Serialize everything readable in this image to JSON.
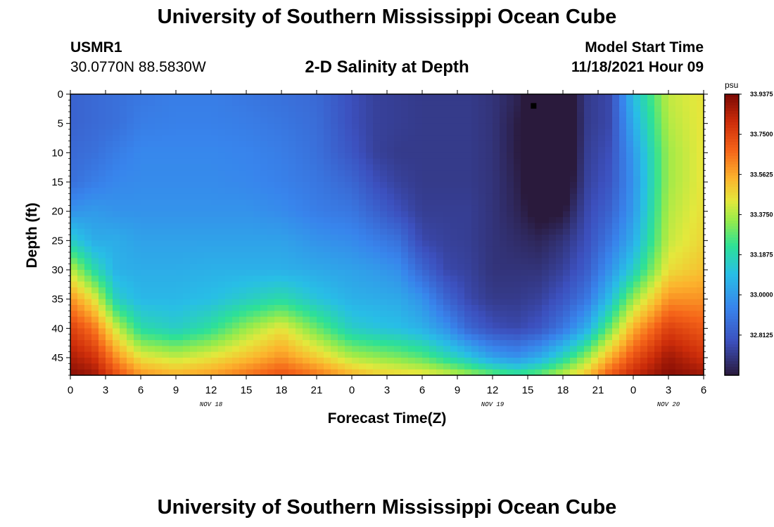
{
  "header": {
    "title": "University of Southern Mississippi Ocean Cube",
    "station": "USMR1",
    "coords": "30.0770N  88.5830W",
    "subtitle": "2-D Salinity at Depth",
    "model_start_label": "Model Start Time",
    "model_start_value": "11/18/2021 Hour 09"
  },
  "footer": {
    "title": "University of Southern Mississippi Ocean Cube"
  },
  "chart_data": {
    "type": "heatmap",
    "xlabel": "Forecast Time(Z)",
    "ylabel": "Depth (ft)",
    "colorbar_unit": "psu",
    "x_hours_range": [
      0,
      54
    ],
    "y_depth_range": [
      0,
      48
    ],
    "y_ticks": [
      0,
      5,
      10,
      15,
      20,
      25,
      30,
      35,
      40,
      45
    ],
    "x_tick_labels": [
      "0",
      "3",
      "6",
      "9",
      "12",
      "15",
      "18",
      "21",
      "0",
      "3",
      "6",
      "9",
      "12",
      "15",
      "18",
      "21",
      "0",
      "3",
      "6"
    ],
    "date_labels": [
      {
        "hour": 12,
        "label": "NOV 18"
      },
      {
        "hour": 36,
        "label": "NOV 19"
      },
      {
        "hour": 51,
        "label": "NOV 20"
      }
    ],
    "colorbar_range": [
      32.625,
      33.9375
    ],
    "colorbar_ticks": [
      "33.9375",
      "33.7500",
      "33.5625",
      "33.3750",
      "33.1875",
      "33.0000",
      "32.8125"
    ],
    "colorbar_tick_values": [
      33.9375,
      33.75,
      33.5625,
      33.375,
      33.1875,
      33.0,
      32.8125
    ],
    "marker": {
      "hour": 39.5,
      "depth": 2
    },
    "profile_hours": [
      0,
      2,
      4,
      6,
      9,
      12,
      15,
      18,
      21,
      24,
      26,
      28,
      30,
      32,
      34,
      36,
      38,
      40,
      42,
      44,
      46,
      48,
      51,
      54
    ],
    "profile_depths": [
      0,
      5,
      10,
      15,
      20,
      25,
      30,
      35,
      40,
      45,
      48
    ],
    "salinity_grid": [
      [
        32.84,
        32.84,
        32.86,
        32.88,
        32.98,
        33.15,
        33.4,
        33.6,
        33.76,
        33.86,
        33.92
      ],
      [
        32.86,
        32.86,
        32.88,
        32.92,
        33.0,
        33.05,
        33.2,
        33.45,
        33.65,
        33.8,
        33.88
      ],
      [
        32.88,
        32.88,
        32.92,
        32.95,
        32.98,
        33.05,
        33.06,
        33.15,
        33.4,
        33.6,
        33.72
      ],
      [
        32.9,
        32.92,
        32.95,
        32.96,
        32.98,
        33.02,
        33.05,
        33.08,
        33.2,
        33.45,
        33.6
      ],
      [
        32.92,
        32.93,
        32.95,
        32.96,
        32.98,
        33.02,
        33.05,
        33.08,
        33.15,
        33.4,
        33.55
      ],
      [
        32.92,
        32.93,
        32.95,
        32.96,
        32.98,
        33.02,
        33.06,
        33.1,
        33.22,
        33.45,
        33.58
      ],
      [
        32.9,
        32.92,
        32.94,
        32.95,
        32.98,
        33.02,
        33.06,
        33.15,
        33.35,
        33.52,
        33.65
      ],
      [
        32.88,
        32.9,
        32.92,
        32.93,
        32.96,
        33.02,
        33.06,
        33.2,
        33.45,
        33.6,
        33.72
      ],
      [
        32.86,
        32.87,
        32.88,
        32.9,
        32.92,
        32.98,
        33.04,
        33.12,
        33.3,
        33.5,
        33.65
      ],
      [
        32.78,
        32.78,
        32.8,
        32.85,
        32.9,
        32.96,
        33.02,
        33.06,
        33.15,
        33.38,
        33.55
      ],
      [
        32.74,
        32.74,
        32.74,
        32.78,
        32.84,
        32.92,
        33.0,
        33.05,
        33.12,
        33.35,
        33.5
      ],
      [
        32.73,
        32.73,
        32.72,
        32.74,
        32.78,
        32.88,
        32.97,
        33.04,
        33.1,
        33.32,
        33.48
      ],
      [
        32.72,
        32.72,
        32.72,
        32.72,
        32.73,
        32.76,
        32.85,
        32.98,
        33.06,
        33.28,
        33.46
      ],
      [
        32.72,
        32.72,
        32.72,
        32.72,
        32.73,
        32.74,
        32.76,
        32.85,
        32.98,
        33.2,
        33.42
      ],
      [
        32.72,
        32.72,
        32.72,
        32.72,
        32.73,
        32.73,
        32.74,
        32.76,
        32.85,
        33.12,
        33.36
      ],
      [
        32.7,
        32.7,
        32.7,
        32.7,
        32.7,
        32.7,
        32.7,
        32.72,
        32.78,
        33.02,
        33.3
      ],
      [
        32.66,
        32.64,
        32.64,
        32.65,
        32.66,
        32.68,
        32.7,
        32.72,
        32.76,
        32.98,
        33.25
      ],
      [
        32.56,
        32.52,
        32.52,
        32.55,
        32.6,
        32.66,
        32.7,
        32.74,
        32.8,
        33.05,
        33.3
      ],
      [
        32.55,
        32.52,
        32.52,
        32.55,
        32.62,
        32.7,
        32.74,
        32.8,
        32.9,
        33.18,
        33.4
      ],
      [
        32.72,
        32.72,
        32.73,
        32.74,
        32.76,
        32.78,
        32.82,
        32.9,
        33.05,
        33.35,
        33.52
      ],
      [
        32.76,
        32.76,
        32.78,
        32.8,
        32.84,
        32.9,
        32.98,
        33.1,
        33.3,
        33.55,
        33.7
      ],
      [
        33.1,
        33.05,
        33.0,
        32.98,
        33.0,
        33.05,
        33.15,
        33.35,
        33.55,
        33.72,
        33.82
      ],
      [
        33.4,
        33.38,
        33.36,
        33.36,
        33.38,
        33.4,
        33.46,
        33.6,
        33.76,
        33.88,
        33.92
      ],
      [
        33.45,
        33.45,
        33.45,
        33.45,
        33.46,
        33.48,
        33.52,
        33.6,
        33.7,
        33.8,
        33.88
      ]
    ]
  }
}
